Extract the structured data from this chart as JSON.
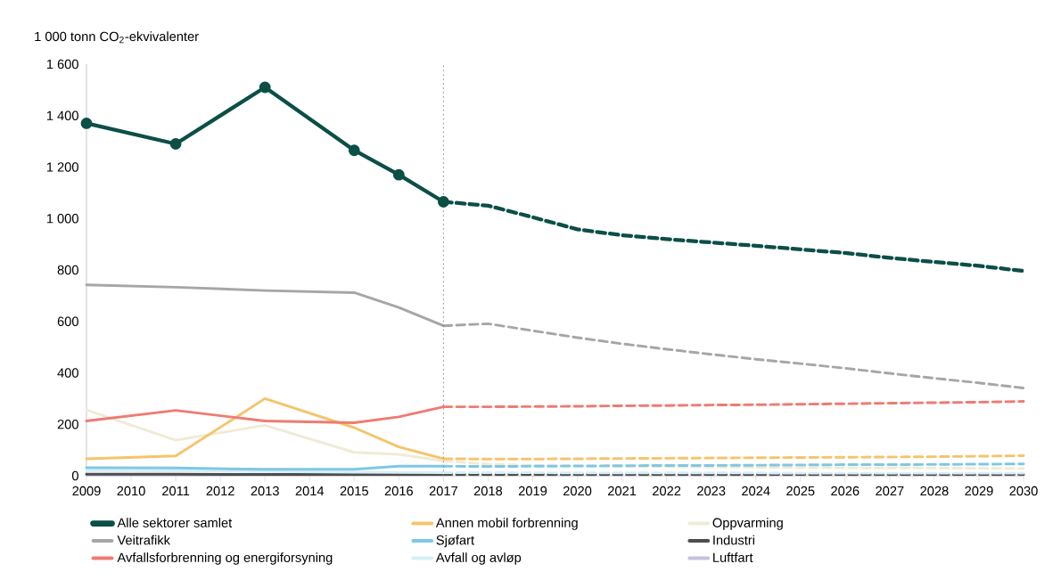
{
  "chart_data": {
    "type": "line",
    "ylabel": "1 000 tonn CO$_{2}$-ekvivalenter",
    "xlim": [
      2009,
      2030
    ],
    "xticks": [
      2009,
      2010,
      2011,
      2012,
      2013,
      2014,
      2015,
      2016,
      2017,
      2018,
      2019,
      2020,
      2021,
      2022,
      2023,
      2024,
      2025,
      2026,
      2027,
      2028,
      2029,
      2030
    ],
    "ylim": [
      0,
      1600
    ],
    "yticks": [
      0,
      200,
      400,
      600,
      800,
      {
        "value": 1000,
        "label": "1 000"
      },
      {
        "value": 1200,
        "label": "1 200"
      },
      {
        "value": 1400,
        "label": "1 400"
      },
      {
        "value": 1600,
        "label": "1 600"
      }
    ],
    "grid": false,
    "legend": "bottom",
    "ref_lines": [
      {
        "axis": "x",
        "value": 2017,
        "color": "#808080",
        "line_style": "dotted"
      }
    ],
    "series": [
      {
        "name": "Alle sektorer samlet",
        "color": "#0b4f47",
        "marker": "circle",
        "line_style": "solid",
        "x": [
          2009,
          2011,
          2013,
          2015,
          2016,
          2017
        ],
        "values": [
          1370,
          1290,
          1510,
          1265,
          1170,
          1065
        ]
      },
      {
        "color": "#0b4f47",
        "line_style": "dashed",
        "x": [
          2017,
          2018,
          2019,
          2020,
          2021,
          2022,
          2023,
          2024,
          2025,
          2026,
          2027,
          2028,
          2029,
          2030
        ],
        "values": [
          1065,
          1050,
          1005,
          958,
          935,
          920,
          907,
          894,
          880,
          866,
          847,
          831,
          816,
          796
        ]
      },
      {
        "name": "Veitrafikk",
        "color": "#a6a6a6",
        "line_style": "solid",
        "x": [
          2009,
          2011,
          2013,
          2015,
          2016,
          2017
        ],
        "values": [
          742,
          733,
          720,
          712,
          654,
          583
        ]
      },
      {
        "color": "#a6a6a6",
        "line_style": "dashed",
        "x": [
          2017,
          2018,
          2019,
          2020,
          2021,
          2022,
          2023,
          2024,
          2025,
          2026,
          2027,
          2028,
          2029,
          2030
        ],
        "values": [
          583,
          591,
          564,
          537,
          513,
          492,
          472,
          453,
          436,
          418,
          398,
          379,
          361,
          341
        ]
      },
      {
        "name": "Avfallsforbrenning og energiforsyning",
        "color": "#ee7b72",
        "line_style": "solid",
        "x": [
          2009,
          2011,
          2013,
          2015,
          2016,
          2017
        ],
        "values": [
          213,
          254,
          213,
          206,
          229,
          268
        ]
      },
      {
        "color": "#ee7b72",
        "line_style": "dashed",
        "x": [
          2017,
          2018,
          2019,
          2020,
          2021,
          2022,
          2023,
          2024,
          2025,
          2026,
          2027,
          2028,
          2029,
          2030
        ],
        "values": [
          268,
          268,
          269,
          270,
          272,
          273,
          275,
          276,
          278,
          280,
          282,
          284,
          286,
          289
        ]
      },
      {
        "name": "Annen mobil forbrenning",
        "color": "#f5c46a",
        "line_style": "solid",
        "x": [
          2009,
          2011,
          2013,
          2015,
          2016,
          2017
        ],
        "values": [
          66,
          77,
          300,
          187,
          112,
          66
        ]
      },
      {
        "color": "#f5c46a",
        "line_style": "dashed",
        "x": [
          2017,
          2018,
          2019,
          2020,
          2021,
          2022,
          2023,
          2024,
          2025,
          2026,
          2027,
          2028,
          2029,
          2030
        ],
        "values": [
          66,
          65,
          65,
          66,
          67,
          68,
          69,
          70,
          71,
          72,
          73,
          74,
          76,
          78
        ]
      },
      {
        "name": "Sjøfart",
        "color": "#7ec8e3",
        "line_style": "solid",
        "x": [
          2009,
          2011,
          2013,
          2015,
          2016,
          2017
        ],
        "values": [
          31,
          30,
          25,
          25,
          37,
          37
        ]
      },
      {
        "color": "#7ec8e3",
        "line_style": "dashed",
        "x": [
          2017,
          2018,
          2019,
          2020,
          2021,
          2022,
          2023,
          2024,
          2025,
          2026,
          2027,
          2028,
          2029,
          2030
        ],
        "values": [
          37,
          36,
          37,
          38,
          39,
          40,
          40,
          41,
          42,
          43,
          43,
          44,
          45,
          46
        ]
      },
      {
        "name": "Avfall og avløp",
        "color": "#d7eef7",
        "line_style": "solid",
        "x": [
          2009,
          2011,
          2013,
          2015,
          2016,
          2017
        ],
        "values": [
          20,
          19,
          16,
          14,
          13,
          12
        ]
      },
      {
        "color": "#d7eef7",
        "line_style": "dashed",
        "x": [
          2017,
          2018,
          2019,
          2020,
          2021,
          2022,
          2023,
          2024,
          2025,
          2026,
          2027,
          2028,
          2029,
          2030
        ],
        "values": [
          12,
          12,
          12,
          11,
          11,
          11,
          11,
          11,
          10,
          10,
          10,
          10,
          10,
          10
        ]
      },
      {
        "name": "Oppvarming",
        "color": "#f1ead6",
        "line_style": "solid",
        "x": [
          2009,
          2011,
          2013,
          2015,
          2016,
          2017
        ],
        "values": [
          256,
          138,
          196,
          91,
          83,
          58
        ]
      },
      {
        "color": "#f1ead6",
        "line_style": "dashed",
        "x": [
          2017,
          2018,
          2019,
          2020,
          2021,
          2022,
          2023,
          2024,
          2025,
          2026,
          2027,
          2028,
          2029,
          2030
        ],
        "values": [
          58,
          45,
          40,
          38,
          36,
          35,
          34,
          33,
          32,
          31,
          30,
          30,
          29,
          28
        ]
      },
      {
        "name": "Industri",
        "color": "#4d4d4d",
        "line_style": "solid",
        "x": [
          2009,
          2011,
          2013,
          2015,
          2016,
          2017
        ],
        "values": [
          6,
          6,
          5,
          5,
          5,
          5
        ]
      },
      {
        "color": "#4d4d4d",
        "line_style": "dashed",
        "x": [
          2017,
          2018,
          2019,
          2020,
          2021,
          2022,
          2023,
          2024,
          2025,
          2026,
          2027,
          2028,
          2029,
          2030
        ],
        "values": [
          5,
          5,
          5,
          5,
          5,
          5,
          5,
          5,
          5,
          5,
          5,
          5,
          5,
          5
        ]
      },
      {
        "name": "Luftfart",
        "color": "#c7c0e0",
        "line_style": "solid",
        "x": [
          2009,
          2011,
          2013,
          2015,
          2016,
          2017
        ],
        "values": [
          3,
          3,
          3,
          3,
          3,
          3
        ]
      },
      {
        "color": "#c7c0e0",
        "line_style": "dashed",
        "x": [
          2017,
          2018,
          2019,
          2020,
          2021,
          2022,
          2023,
          2024,
          2025,
          2026,
          2027,
          2028,
          2029,
          2030
        ],
        "values": [
          3,
          3,
          3,
          3,
          3,
          3,
          3,
          3,
          3,
          3,
          3,
          3,
          3,
          3
        ]
      }
    ]
  }
}
